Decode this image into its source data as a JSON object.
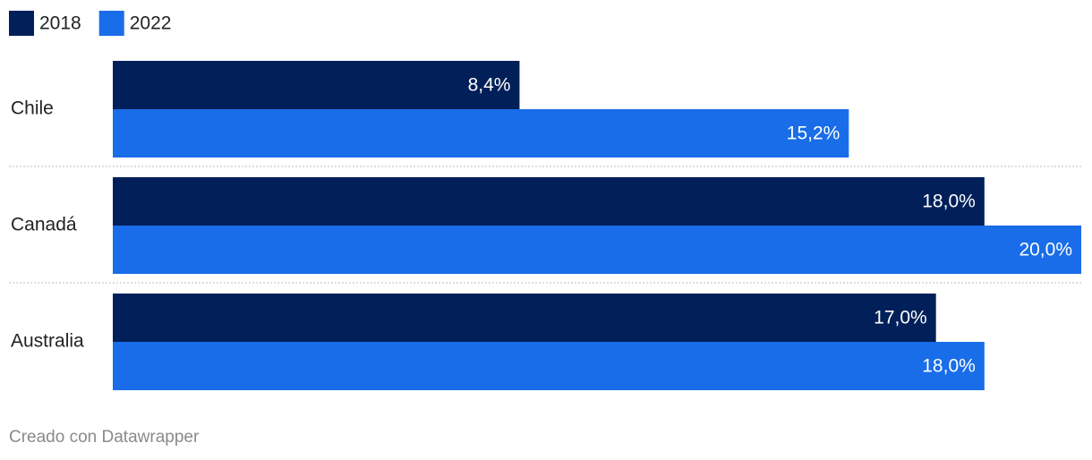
{
  "chart_data": {
    "type": "grouped-hbar",
    "categories": [
      "Chile",
      "Canadá",
      "Australia"
    ],
    "series": [
      {
        "name": "2018",
        "color": "#012059",
        "values": [
          8.4,
          18.0,
          17.0
        ],
        "value_labels": [
          "8,4%",
          "18,0%",
          "17,0%"
        ]
      },
      {
        "name": "2022",
        "color": "#196de8",
        "values": [
          15.2,
          20.0,
          18.0
        ],
        "value_labels": [
          "15,2%",
          "20,0%",
          "18,0%"
        ]
      }
    ],
    "xlim": [
      0,
      20
    ],
    "credit": "Creado con Datawrapper"
  }
}
